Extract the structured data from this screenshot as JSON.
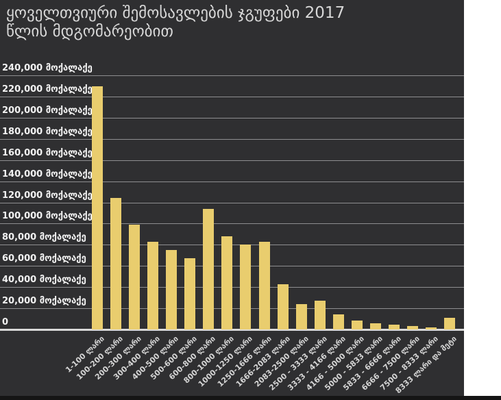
{
  "panel": {
    "background": "#2f2f31",
    "right_margin_background": "#ffffff",
    "bottom_strip_background": "#151515"
  },
  "chart_data": {
    "type": "bar",
    "title": "ყოველთვიური შემოსავლების ჯგუფები 2017 წლის მდგომარეობით",
    "title_line1": "ყოველთვიური შემოსავლების ჯგუფები 2017",
    "title_line2": "წლის მდგომარეობით",
    "xlabel": "",
    "ylabel": "",
    "grid": true,
    "legend": "none",
    "ylim": [
      0,
      240000
    ],
    "y_tick_step": 20000,
    "unit_suffix": "მოქალაქე",
    "categories": [
      "1-100 ლარი",
      "100-200 ლარი",
      "200-300 ლარი",
      "300-400 ლარი",
      "400-500 ლარი",
      "500-600 ლარი",
      "600-800 ლარი",
      "800-1000 ლარი",
      "1000-1250 ლარი",
      "1250-1666 ლარი",
      "1666-2083 ლარი",
      "2083-2500 ლარი",
      "2500 - 3333 ლარი",
      "3333 - 4166 ლარი",
      "4166 - 5000 ლარი",
      "5000 - 5833 ლარი",
      "5833 - 6666 ლარი",
      "6666 - 7500 ლარი",
      "7500 - 8333 ლარი",
      "8333 ლარი და მეტი"
    ],
    "values": [
      230000,
      124000,
      99000,
      83000,
      75000,
      67000,
      114000,
      88000,
      80000,
      83000,
      43000,
      24000,
      27000,
      14000,
      8500,
      6000,
      4700,
      3000,
      2000,
      11000
    ],
    "y_ticks": [
      {
        "value": 240000,
        "label": "240,000 მოქალაქე"
      },
      {
        "value": 220000,
        "label": "220,000 მოქალაქე"
      },
      {
        "value": 200000,
        "label": "200,000 მოქალაქე"
      },
      {
        "value": 180000,
        "label": "180,000 მოქალაქე"
      },
      {
        "value": 160000,
        "label": "160,000 მოქალაქე"
      },
      {
        "value": 140000,
        "label": "140,000 მოქალაქე"
      },
      {
        "value": 120000,
        "label": "120,000 მოქალაქე"
      },
      {
        "value": 100000,
        "label": "100,000 მოქალაქე"
      },
      {
        "value": 80000,
        "label": "80,000 მოქალაქე"
      },
      {
        "value": 60000,
        "label": "60,000 მოქალაქე"
      },
      {
        "value": 40000,
        "label": "40,000 მოქალაქე"
      },
      {
        "value": 20000,
        "label": "20,000 მოქალაქე"
      },
      {
        "value": 0,
        "label": "0"
      }
    ],
    "colors": {
      "bar": "#e9cd6e",
      "gridline": "#8e8e90",
      "baseline": "#d9d9d9",
      "title_text": "#d8d8d8",
      "y_tick_text": "#f2f2f2",
      "x_tick_text": "#d4d4d4"
    }
  }
}
